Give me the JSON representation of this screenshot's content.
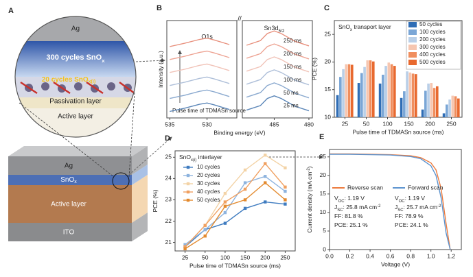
{
  "panel_a": {
    "label": "A",
    "circle": {
      "top": "Ag",
      "main": [
        "300 cycles SnO",
        {
          "sub": "x"
        }
      ],
      "interlayer": [
        "20 cycles SnO",
        {
          "sub": "x(i)"
        }
      ],
      "passivation": "Passivation layer",
      "active": "Active layer"
    },
    "stack": {
      "ag": "Ag",
      "snox": [
        "SnO",
        {
          "sub": "x"
        }
      ],
      "active": "Active layer",
      "ito": "ITO"
    }
  },
  "chart_data": [
    {
      "label": "B",
      "type": "line",
      "xlabel": "Binding energy (eV)",
      "ylabel": "Intensity (a.u.)",
      "peak_labels": [
        "O1s",
        [
          "Sn3d",
          {
            "sub": "5/2"
          }
        ]
      ],
      "break_mark": "//",
      "arrow_label": "Pulse time of TDMASn source",
      "xlim": [
        535.4,
        479.5
      ],
      "x_break": [
        526,
        489.6
      ],
      "xticks": [
        535,
        530,
        485,
        480
      ],
      "ylim": [
        -0.5,
        7
      ],
      "x": [
        535,
        533,
        531,
        530,
        529,
        527,
        489,
        487,
        486,
        485,
        484,
        482,
        480
      ],
      "series": [
        {
          "name": "25 ms",
          "color": "#5b86b8",
          "values": [
            0,
            0.25,
            0.55,
            0.65,
            0.5,
            0.15,
            0.1,
            0.45,
            1.0,
            1.2,
            1.0,
            0.4,
            0.05
          ]
        },
        {
          "name": "50 ms",
          "color": "#8aa9cf",
          "values": [
            1,
            1.25,
            1.55,
            1.65,
            1.5,
            1.15,
            1.1,
            1.45,
            2.0,
            2.2,
            2.0,
            1.4,
            1.05
          ]
        },
        {
          "name": "100 ms",
          "color": "#aebfd9",
          "values": [
            2,
            2.25,
            2.55,
            2.65,
            2.5,
            2.15,
            2.1,
            2.45,
            3.0,
            3.2,
            3.0,
            2.4,
            2.05
          ]
        },
        {
          "name": "150 ms",
          "color": "#f1c3b8",
          "values": [
            3,
            3.25,
            3.55,
            3.65,
            3.5,
            3.15,
            3.1,
            3.45,
            4.0,
            4.2,
            4.0,
            3.4,
            3.05
          ]
        },
        {
          "name": "200 ms",
          "color": "#eea595",
          "values": [
            4,
            4.25,
            4.55,
            4.65,
            4.5,
            4.15,
            4.1,
            4.45,
            5.0,
            5.2,
            5.0,
            4.4,
            4.05
          ]
        },
        {
          "name": "250 ms",
          "color": "#e8917e",
          "values": [
            5,
            5.25,
            5.55,
            5.65,
            5.5,
            5.15,
            5.1,
            5.45,
            6.0,
            6.2,
            6.0,
            5.4,
            5.05
          ]
        }
      ]
    },
    {
      "label": "C",
      "type": "bar",
      "xlabel": "Pulse time of TDMASn source (ms)",
      "ylabel": "PCE (%)",
      "annotation": [
        "SnO",
        {
          "sub": "x"
        },
        " transport layer"
      ],
      "legend": "upper right",
      "categories": [
        "25",
        "50",
        "100",
        "150",
        "200",
        "250"
      ],
      "ylim": [
        10,
        27.5
      ],
      "yticks": [
        10,
        15,
        20,
        25
      ],
      "series": [
        {
          "name": "50 cycles",
          "color": "#2f6db5",
          "values": [
            14.0,
            16.2,
            16.1,
            13.5,
            11.4,
            10.7
          ]
        },
        {
          "name": "100 cycles",
          "color": "#7aa6d6",
          "values": [
            17.3,
            18.0,
            17.7,
            14.7,
            14.8,
            12.3
          ]
        },
        {
          "name": "200 cycles",
          "color": "#b9cfe8",
          "values": [
            18.7,
            19.1,
            19.3,
            18.3,
            16.1,
            13.2
          ]
        },
        {
          "name": "300 cycles",
          "color": "#f6c6b0",
          "values": [
            19.6,
            20.3,
            19.9,
            18.1,
            16.2,
            13.9
          ]
        },
        {
          "name": "400 cycles",
          "color": "#f08e5e",
          "values": [
            19.6,
            20.3,
            19.6,
            17.9,
            15.3,
            13.8
          ]
        },
        {
          "name": "500 cycles",
          "color": "#e8692f",
          "values": [
            19.5,
            20.1,
            19.3,
            17.8,
            15.6,
            13.4
          ]
        }
      ]
    },
    {
      "label": "D",
      "type": "line",
      "xlabel": "Pulse time of TDMASn source (ms)",
      "ylabel": "PCE (%)",
      "annotation": [
        "SnO",
        {
          "sub": "x(i)"
        },
        " interlayer"
      ],
      "legend": "upper left",
      "marker": "square",
      "categories": [
        "25",
        "50",
        "100",
        "150",
        "200",
        "250"
      ],
      "ylim": [
        20.6,
        25.3
      ],
      "yticks": [
        21,
        22,
        23,
        24,
        25
      ],
      "series": [
        {
          "name": "10 cycles",
          "color": "#3f7cc0",
          "values": [
            20.8,
            21.6,
            21.9,
            22.6,
            22.9,
            22.8
          ]
        },
        {
          "name": "20 cycles",
          "color": "#8db3de",
          "values": [
            20.9,
            21.6,
            22.4,
            23.8,
            24.1,
            23.4
          ]
        },
        {
          "name": "30 cycles",
          "color": "#f3d3a6",
          "values": [
            20.8,
            21.8,
            23.3,
            24.4,
            25.1,
            24.5
          ]
        },
        {
          "name": "40 cycles",
          "color": "#f0a060",
          "values": [
            20.8,
            21.8,
            22.9,
            23.5,
            24.7,
            23.6
          ]
        },
        {
          "name": "50 cycles",
          "color": "#e38a2e",
          "values": [
            20.7,
            21.3,
            22.7,
            23.0,
            23.8,
            23.0
          ]
        }
      ]
    },
    {
      "label": "E",
      "type": "line",
      "xlabel": "Voltage (V)",
      "ylabel": [
        "Current density (mA cm",
        {
          "sup": "-2"
        },
        ")"
      ],
      "legend": "center",
      "xlim": [
        0,
        1.3
      ],
      "xticks": [
        {
          "value": 0,
          "label": "0.0"
        },
        0.2,
        0.4,
        0.6,
        0.8,
        {
          "value": 1,
          "label": "1.0"
        },
        1.2
      ],
      "ylim": [
        0,
        27
      ],
      "yticks": [
        0,
        5,
        10,
        15,
        20,
        25
      ],
      "x": [
        0,
        0.2,
        0.4,
        0.6,
        0.8,
        0.9,
        1.0,
        1.05,
        1.1,
        1.15,
        1.19
      ],
      "series": [
        {
          "name": "Reverse scan",
          "color": "#ec7a3c",
          "values": [
            25.8,
            25.8,
            25.7,
            25.6,
            25.3,
            24.8,
            23.4,
            21.5,
            16.5,
            7,
            0
          ],
          "stats": [
            [
              "V",
              {
                "sub": "OC"
              },
              ": 1.19 V"
            ],
            [
              "J",
              {
                "sub": "SC"
              },
              ": 25.8 mA cm",
              {
                "sup": "-2"
              }
            ],
            "FF: 81.8 %",
            "PCE: 25.1 %"
          ]
        },
        {
          "name": "Forward scan",
          "color": "#5b93cf",
          "values": [
            25.7,
            25.7,
            25.6,
            25.5,
            25.1,
            24.5,
            22.6,
            20.0,
            14.0,
            4.5,
            0
          ],
          "stats": [
            [
              "V",
              {
                "sub": "OC"
              },
              ": 1.19 V"
            ],
            [
              "J",
              {
                "sub": "SC"
              },
              ": 25.7 mA cm",
              {
                "sup": "-2"
              }
            ],
            "FF: 78.9 %",
            "PCE: 24.1 %"
          ]
        }
      ]
    }
  ]
}
